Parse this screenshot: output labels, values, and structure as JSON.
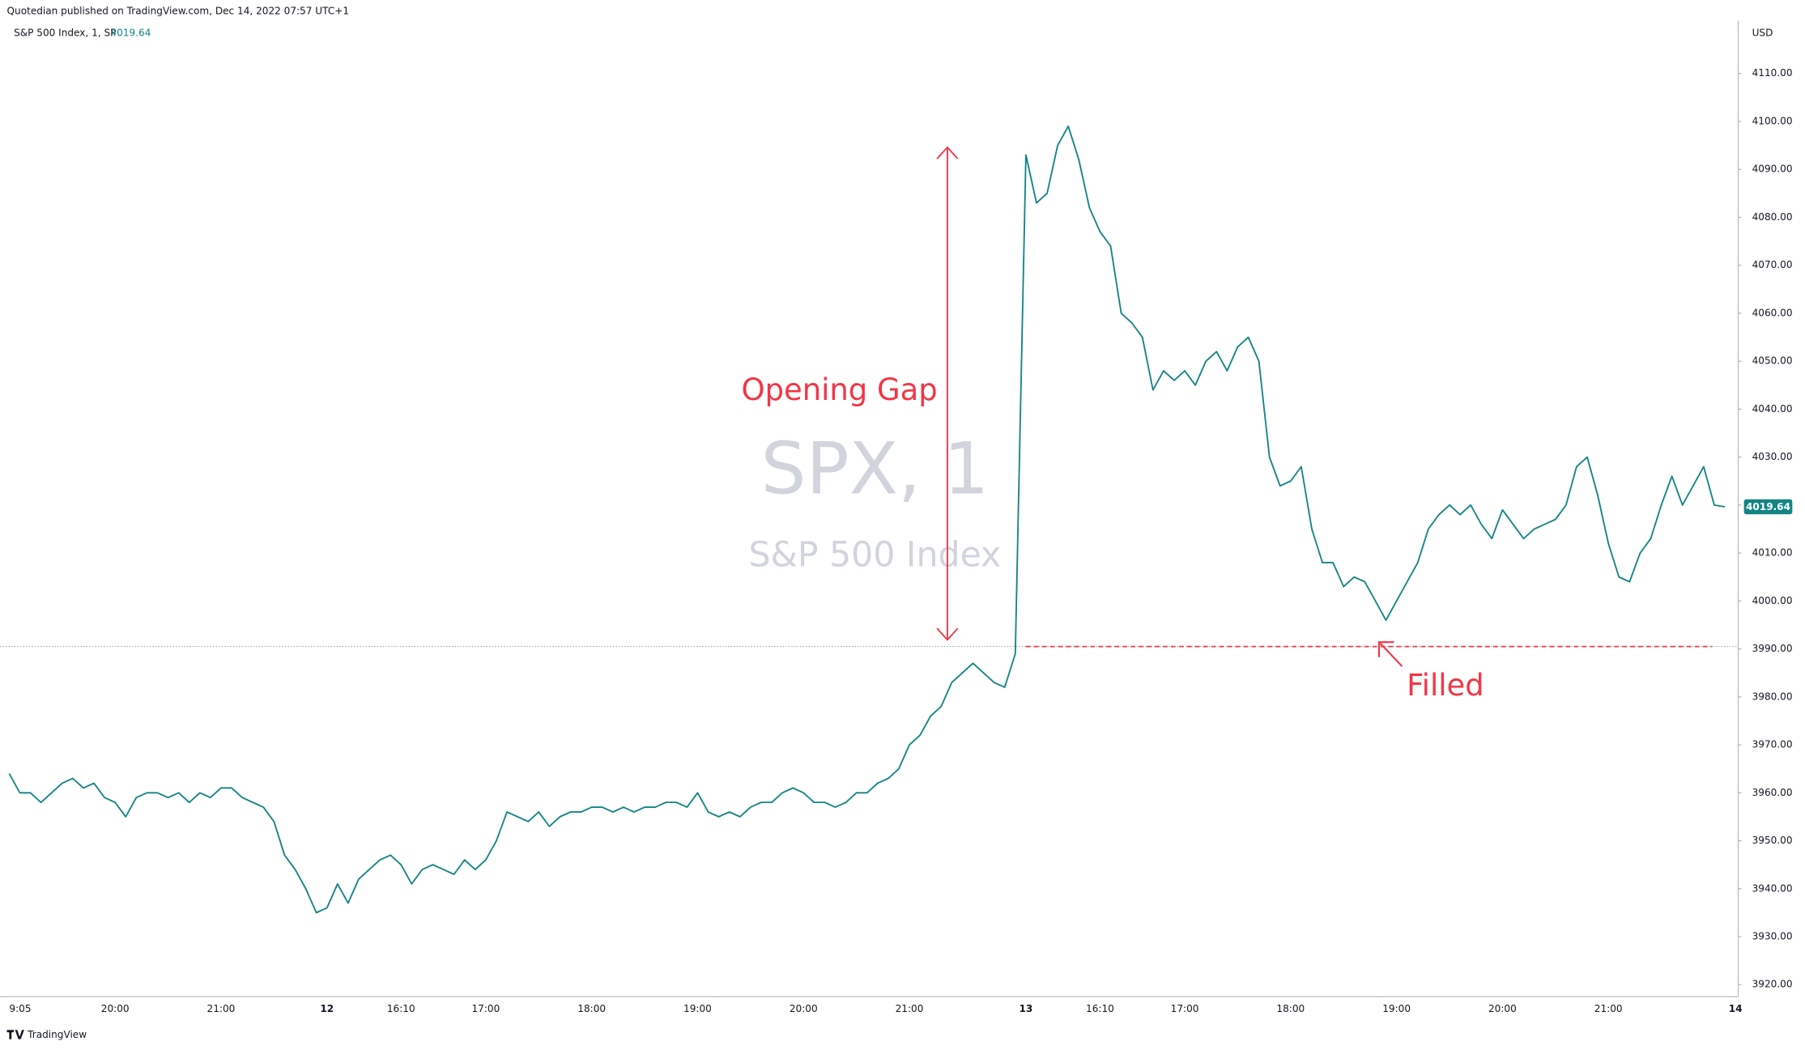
{
  "chart_data": {
    "type": "line",
    "header": "Quotedian published on TradingView.com, Dec 14, 2022 07:57 UTC+1",
    "currency": "USD",
    "watermark_title": "SPX, 1",
    "watermark_subtitle": "S&P 500 Index",
    "annotations": [
      {
        "text": "Opening Gap"
      },
      {
        "text": "Filled"
      }
    ],
    "brand": "TradingView",
    "grid": false,
    "reference_lines": [
      3990.5
    ],
    "ylim": [
      3917.5,
      4121
    ],
    "yticks": [
      {
        "value": 3920,
        "label": "3920.00"
      },
      {
        "value": 3930,
        "label": "3930.00"
      },
      {
        "value": 3940,
        "label": "3940.00"
      },
      {
        "value": 3950,
        "label": "3950.00"
      },
      {
        "value": 3960,
        "label": "3960.00"
      },
      {
        "value": 3970,
        "label": "3970.00"
      },
      {
        "value": 3980,
        "label": "3980.00"
      },
      {
        "value": 3990,
        "label": "3990.00"
      },
      {
        "value": 4000,
        "label": "4000.00"
      },
      {
        "value": 4010,
        "label": "4010.00"
      },
      {
        "value": 4020,
        "label": "4020.00"
      },
      {
        "value": 4030,
        "label": "4030.00"
      },
      {
        "value": 4040,
        "label": "4040.00"
      },
      {
        "value": 4050,
        "label": "4050.00"
      },
      {
        "value": 4060,
        "label": "4060.00"
      },
      {
        "value": 4070,
        "label": "4070.00"
      },
      {
        "value": 4080,
        "label": "4080.00"
      },
      {
        "value": 4090,
        "label": "4090.00"
      },
      {
        "value": 4100,
        "label": "4100.00"
      },
      {
        "value": 4110,
        "label": "4110.00"
      }
    ],
    "categories": [
      "9:05",
      null,
      null,
      null,
      null,
      null,
      null,
      null,
      null,
      null,
      "20:00",
      null,
      null,
      null,
      null,
      null,
      null,
      null,
      null,
      null,
      "21:00",
      null,
      null,
      null,
      null,
      null,
      null,
      null,
      null,
      null,
      "12",
      null,
      null,
      null,
      null,
      null,
      null,
      "16:10",
      null,
      null,
      null,
      null,
      null,
      null,
      null,
      "17:00",
      null,
      null,
      null,
      null,
      null,
      null,
      null,
      null,
      null,
      "18:00",
      null,
      null,
      null,
      null,
      null,
      null,
      null,
      null,
      null,
      "19:00",
      null,
      null,
      null,
      null,
      null,
      null,
      null,
      null,
      null,
      "20:00",
      null,
      null,
      null,
      null,
      null,
      null,
      null,
      null,
      null,
      "21:00",
      null,
      null,
      null,
      null,
      null,
      null,
      null,
      null,
      null,
      null,
      "13",
      null,
      null,
      null,
      null,
      null,
      null,
      "16:10",
      null,
      null,
      null,
      null,
      null,
      null,
      null,
      "17:00",
      null,
      null,
      null,
      null,
      null,
      null,
      null,
      null,
      null,
      "18:00",
      null,
      null,
      null,
      null,
      null,
      null,
      null,
      null,
      null,
      "19:00",
      null,
      null,
      null,
      null,
      null,
      null,
      null,
      null,
      null,
      "20:00",
      null,
      null,
      null,
      null,
      null,
      null,
      null,
      null,
      null,
      "21:00",
      null,
      null,
      null,
      null,
      null,
      null,
      null,
      null,
      null,
      null,
      null,
      "14"
    ],
    "series": [
      {
        "name": "S&P 500 Index, 1, SP",
        "color": "#138484",
        "values": [
          3964,
          3960,
          3960,
          3958,
          3960,
          3962,
          3963,
          3961,
          3962,
          3959,
          3958,
          3955,
          3959,
          3960,
          3960,
          3959,
          3960,
          3958,
          3960,
          3959,
          3961,
          3961,
          3959,
          3958,
          3957,
          3954,
          3947,
          3944,
          3940,
          3935,
          3936,
          3941,
          3937,
          3942,
          3944,
          3946,
          3947,
          3945,
          3941,
          3944,
          3945,
          3944,
          3943,
          3946,
          3944,
          3946,
          3950,
          3956,
          3955,
          3954,
          3956,
          3953,
          3955,
          3956,
          3956,
          3957,
          3957,
          3956,
          3957,
          3956,
          3957,
          3957,
          3958,
          3958,
          3957,
          3960,
          3956,
          3955,
          3956,
          3955,
          3957,
          3958,
          3958,
          3960,
          3961,
          3960,
          3958,
          3958,
          3957,
          3958,
          3960,
          3960,
          3962,
          3963,
          3965,
          3970,
          3972,
          3976,
          3978,
          3983,
          3985,
          3987,
          3985,
          3983,
          3982,
          3989,
          4093,
          4083,
          4085,
          4095,
          4099,
          4092,
          4082,
          4077,
          4074,
          4060,
          4058,
          4055,
          4044,
          4048,
          4046,
          4048,
          4045,
          4050,
          4052,
          4048,
          4053,
          4055,
          4050,
          4030,
          4024,
          4025,
          4028,
          4015,
          4008,
          4008,
          4003,
          4005,
          4004,
          4000,
          3996,
          4000,
          4004,
          4008,
          4015,
          4018,
          4020,
          4018,
          4020,
          4016,
          4013,
          4019,
          4016,
          4013,
          4015,
          4016,
          4017,
          4020,
          4028,
          4030,
          4022,
          4012,
          4005,
          4004,
          4010,
          4013,
          4020,
          4026,
          4020,
          4024,
          4028,
          4020,
          4019.64,
          null
        ]
      }
    ]
  }
}
